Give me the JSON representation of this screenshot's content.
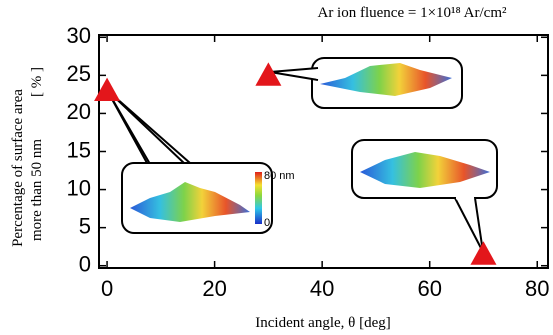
{
  "chart_data": {
    "type": "scatter",
    "title": "Ar ion fluence = 1×10¹⁸ Ar/cm²",
    "x_label": "Incident angle, θ [deg]",
    "y_label": [
      "Percentage of surface area",
      "more than 50 nm",
      "[ % ]"
    ],
    "x": [
      0,
      30,
      70
    ],
    "values": [
      23,
      25,
      1.5
    ],
    "color": "#e3161b",
    "xlim": [
      -1.5,
      82
    ],
    "xticks": [
      0,
      20,
      40,
      60,
      80
    ],
    "ylim": [
      -0.3,
      30.3
    ],
    "yticks": [
      0,
      5,
      10,
      15,
      20,
      25,
      30
    ],
    "annotations": [
      "80 nm",
      "0"
    ]
  }
}
